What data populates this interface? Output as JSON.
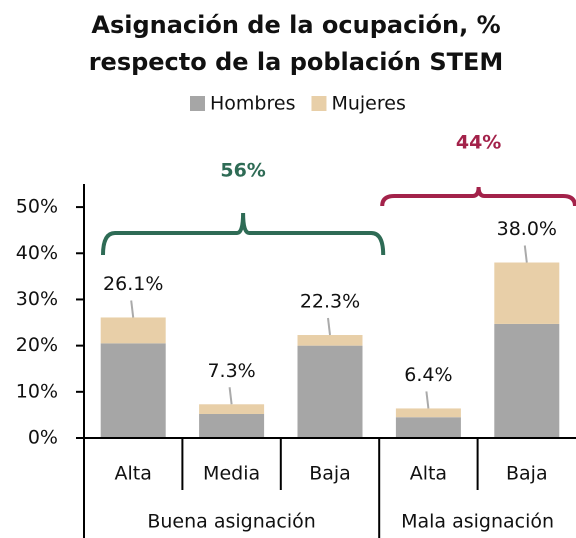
{
  "chart_data": {
    "type": "stacked_bar",
    "title": [
      "Asignación de la ocupación, %",
      "respecto de la población STEM"
    ],
    "categories": [
      "Alta",
      "Media",
      "Baja",
      "Alta",
      "Baja"
    ],
    "groups": [
      {
        "name": "Buena asignación",
        "count": 3,
        "annotation": "56%",
        "color": "#2e6b55"
      },
      {
        "name": "Mala asignación",
        "count": 2,
        "annotation": "44%",
        "color": "#a3224a"
      }
    ],
    "series": [
      {
        "name": "Hombres",
        "color": "#a6a6a6",
        "values": [
          20.5,
          5.2,
          20.0,
          4.5,
          24.7
        ]
      },
      {
        "name": "Mujeres",
        "color": "#e8cfa8",
        "values": [
          5.6,
          2.1,
          2.3,
          1.9,
          13.3
        ]
      }
    ],
    "totals": [
      26.1,
      7.3,
      22.3,
      6.4,
      38.0
    ],
    "total_labels": [
      "26.1%",
      "7.3%",
      "22.3%",
      "6.4%",
      "38.0%"
    ],
    "ylim": [
      0,
      55
    ],
    "yticks": [
      {
        "value": 0,
        "label": "0%"
      },
      {
        "value": 10,
        "label": "10%"
      },
      {
        "value": 20,
        "label": "20%"
      },
      {
        "value": 30,
        "label": "30%"
      },
      {
        "value": 40,
        "label": "40%"
      },
      {
        "value": 50,
        "label": "50%"
      }
    ]
  }
}
